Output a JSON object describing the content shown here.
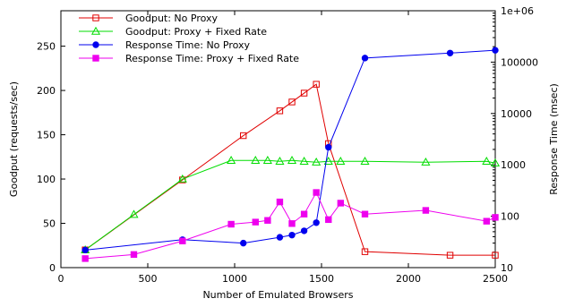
{
  "chart_data": {
    "type": "line",
    "xlabel": "Number of Emulated Browsers",
    "ylabel_left": "Goodput (requests/sec)",
    "ylabel_right": "Response Time (msec)",
    "xlim": [
      0,
      2500
    ],
    "ylim_left": [
      0,
      290
    ],
    "ylim_right": [
      10,
      1000000
    ],
    "right_axis_scale": "log",
    "x_ticks": [
      "0",
      "500",
      "1000",
      "1500",
      "2000",
      "2500"
    ],
    "y_left_ticks": [
      "0",
      "50",
      "100",
      "150",
      "200",
      "250"
    ],
    "y_right_ticks": [
      "10",
      "100",
      "1000",
      "10000",
      "100000",
      "1e+06"
    ],
    "legend_position": "top-left",
    "grid": false,
    "series": [
      {
        "name": "Goodput: No Proxy",
        "axis": "left",
        "color": "#e00000",
        "marker": "open-square",
        "x": [
          140,
          700,
          1050,
          1260,
          1330,
          1400,
          1470,
          1540,
          1750,
          2240,
          2500
        ],
        "y": [
          20,
          99,
          149,
          177,
          187,
          197,
          207,
          140,
          18,
          14,
          14
        ]
      },
      {
        "name": "Goodput: Proxy + Fixed Rate",
        "axis": "left",
        "color": "#00dd00",
        "marker": "open-triangle",
        "x": [
          140,
          420,
          700,
          980,
          1120,
          1190,
          1260,
          1330,
          1400,
          1470,
          1540,
          1610,
          1750,
          2100,
          2450,
          2500
        ],
        "y": [
          20,
          60,
          100,
          121,
          121,
          121,
          120,
          121,
          120,
          119,
          120,
          120,
          120,
          119,
          120,
          118
        ]
      },
      {
        "name": "Response Time: No Proxy",
        "axis": "right",
        "color": "#0000ee",
        "marker": "filled-circle",
        "x": [
          140,
          700,
          1050,
          1260,
          1330,
          1400,
          1470,
          1540,
          1750,
          2240,
          2500
        ],
        "y": [
          22,
          35,
          30,
          39,
          43,
          52,
          75,
          2200,
          120000,
          150000,
          170000
        ]
      },
      {
        "name": "Response Time: Proxy + Fixed Rate",
        "axis": "right",
        "color": "#ee00ee",
        "marker": "filled-square",
        "x": [
          140,
          420,
          700,
          980,
          1120,
          1190,
          1260,
          1330,
          1400,
          1470,
          1540,
          1610,
          1750,
          2100,
          2450,
          2500
        ],
        "y": [
          15,
          18,
          33,
          70,
          77,
          83,
          190,
          72,
          110,
          290,
          86,
          180,
          110,
          130,
          80,
          95
        ]
      }
    ]
  }
}
